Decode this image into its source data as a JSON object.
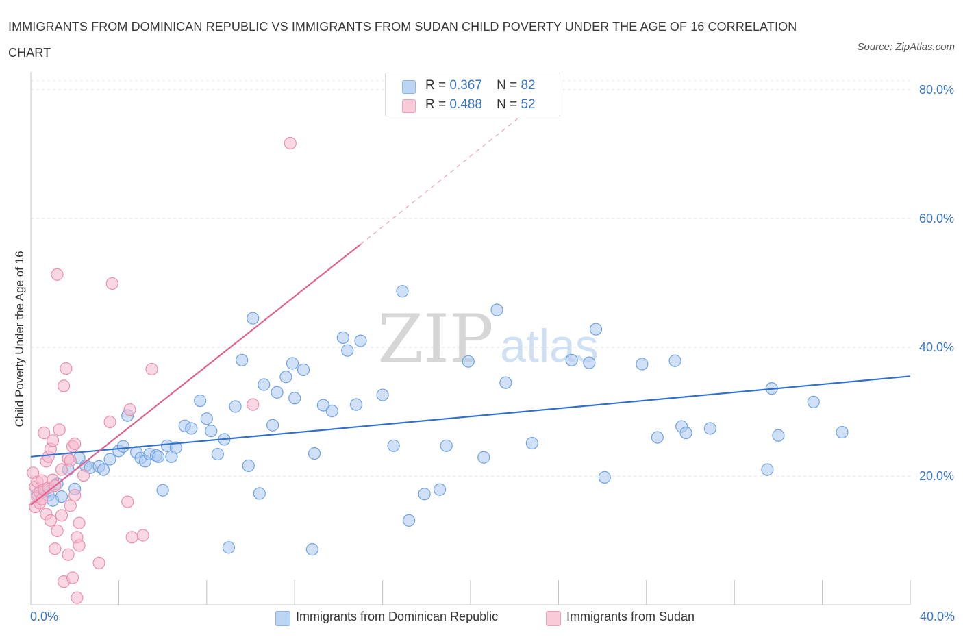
{
  "title": "IMMIGRANTS FROM DOMINICAN REPUBLIC VS IMMIGRANTS FROM SUDAN CHILD POVERTY UNDER THE AGE OF 16 CORRELATION CHART",
  "source": "Source: ZipAtlas.com",
  "watermark": {
    "zip": "ZIP",
    "atlas": "atlas"
  },
  "legend_top": {
    "rows": [
      {
        "r_label": "R =",
        "r_value": "0.367",
        "n_label": "N =",
        "n_value": "82",
        "color": "#aac8f0"
      },
      {
        "r_label": "R =",
        "r_value": "0.488",
        "n_label": "N =",
        "n_value": "52",
        "color": "#f5b8cc"
      }
    ]
  },
  "legend_bottom": [
    {
      "label": "Immigrants from Dominican Republic",
      "color": "#aac8f0"
    },
    {
      "label": "Immigrants from Sudan",
      "color": "#f5b8cc"
    }
  ],
  "x_tick_left": "0.0%",
  "x_tick_right": "40.0%",
  "chart_data": {
    "type": "scatter",
    "title": "IMMIGRANTS FROM DOMINICAN REPUBLIC VS IMMIGRANTS FROM SUDAN CHILD POVERTY UNDER THE AGE OF 16 CORRELATION CHART",
    "xlabel": "",
    "ylabel": "Child Poverty Under the Age of 16",
    "xlim": [
      0,
      40
    ],
    "ylim": [
      0,
      80
    ],
    "y_ticks": [
      {
        "value": 20,
        "label": "20.0%"
      },
      {
        "value": 40,
        "label": "40.0%"
      },
      {
        "value": 60,
        "label": "60.0%"
      },
      {
        "value": 80,
        "label": "80.0%"
      }
    ],
    "grid": true,
    "legend": "bottom",
    "series": [
      {
        "name": "Immigrants from Dominican Republic",
        "color": "#6fa2e2",
        "fill": "#aac8f0",
        "r": 0.367,
        "n": 82,
        "trend": {
          "x0": 0,
          "y0": 23.0,
          "x1": 40,
          "y1": 35.5
        },
        "points": [
          [
            0.3,
            17.2
          ],
          [
            0.6,
            17.6
          ],
          [
            0.8,
            17.0
          ],
          [
            1.2,
            18.8
          ],
          [
            1.4,
            16.8
          ],
          [
            1.7,
            21.0
          ],
          [
            2.2,
            22.8
          ],
          [
            2.5,
            21.6
          ],
          [
            2.7,
            21.3
          ],
          [
            3.1,
            21.5
          ],
          [
            3.3,
            21.0
          ],
          [
            3.6,
            22.6
          ],
          [
            4.0,
            23.9
          ],
          [
            4.2,
            24.6
          ],
          [
            4.4,
            29.4
          ],
          [
            4.8,
            23.7
          ],
          [
            5.0,
            22.8
          ],
          [
            5.2,
            22.3
          ],
          [
            5.4,
            23.4
          ],
          [
            5.7,
            23.2
          ],
          [
            6.0,
            17.8
          ],
          [
            6.2,
            24.7
          ],
          [
            6.4,
            23.0
          ],
          [
            6.6,
            24.4
          ],
          [
            7.0,
            27.8
          ],
          [
            7.3,
            27.4
          ],
          [
            7.7,
            31.7
          ],
          [
            8.0,
            28.9
          ],
          [
            8.2,
            27.0
          ],
          [
            8.5,
            23.4
          ],
          [
            8.8,
            25.7
          ],
          [
            9.0,
            8.9
          ],
          [
            9.3,
            30.8
          ],
          [
            9.6,
            38.0
          ],
          [
            9.9,
            21.6
          ],
          [
            10.1,
            44.5
          ],
          [
            10.4,
            17.3
          ],
          [
            10.6,
            34.2
          ],
          [
            11.0,
            27.9
          ],
          [
            11.2,
            33.0
          ],
          [
            11.6,
            35.4
          ],
          [
            11.9,
            37.5
          ],
          [
            12.0,
            32.1
          ],
          [
            12.4,
            36.5
          ],
          [
            12.8,
            8.6
          ],
          [
            12.9,
            23.5
          ],
          [
            13.3,
            31.0
          ],
          [
            13.7,
            30.1
          ],
          [
            14.2,
            41.5
          ],
          [
            14.4,
            39.5
          ],
          [
            14.8,
            31.1
          ],
          [
            15.0,
            41.0
          ],
          [
            16.0,
            32.6
          ],
          [
            16.5,
            24.7
          ],
          [
            16.9,
            48.7
          ],
          [
            17.2,
            13.1
          ],
          [
            17.9,
            17.2
          ],
          [
            18.6,
            17.9
          ],
          [
            18.9,
            24.7
          ],
          [
            19.9,
            37.8
          ],
          [
            20.6,
            22.9
          ],
          [
            21.2,
            45.8
          ],
          [
            21.6,
            34.5
          ],
          [
            22.8,
            25.1
          ],
          [
            24.6,
            38.0
          ],
          [
            25.4,
            37.6
          ],
          [
            25.7,
            42.8
          ],
          [
            26.1,
            19.8
          ],
          [
            27.8,
            37.4
          ],
          [
            28.5,
            26.0
          ],
          [
            29.3,
            37.9
          ],
          [
            29.6,
            27.7
          ],
          [
            29.8,
            26.7
          ],
          [
            30.9,
            27.4
          ],
          [
            33.5,
            21.0
          ],
          [
            33.7,
            33.6
          ],
          [
            34.0,
            26.3
          ],
          [
            35.6,
            31.5
          ],
          [
            36.9,
            26.8
          ],
          [
            2.0,
            18.0
          ],
          [
            1.0,
            16.2
          ],
          [
            5.8,
            23.0
          ]
        ]
      },
      {
        "name": "Immigrants from Sudan",
        "color": "#ea8fae",
        "fill": "#f5b8cc",
        "r": 0.488,
        "n": 52,
        "trend": {
          "x0": 0,
          "y0": 15.5,
          "x1": 15,
          "y1": 56.0
        },
        "trend_extension": {
          "x0": 15,
          "y0": 56.0,
          "x1": 22.5,
          "y1": 76.5
        },
        "points": [
          [
            0.1,
            20.5
          ],
          [
            0.2,
            18.3
          ],
          [
            0.2,
            15.2
          ],
          [
            0.3,
            19.1
          ],
          [
            0.3,
            16.8
          ],
          [
            0.4,
            17.5
          ],
          [
            0.4,
            15.8
          ],
          [
            0.5,
            19.3
          ],
          [
            0.5,
            16.4
          ],
          [
            0.6,
            17.9
          ],
          [
            0.6,
            26.7
          ],
          [
            0.7,
            22.3
          ],
          [
            0.7,
            14.1
          ],
          [
            0.8,
            23.0
          ],
          [
            0.8,
            18.2
          ],
          [
            0.9,
            24.2
          ],
          [
            0.9,
            13.1
          ],
          [
            1.0,
            25.5
          ],
          [
            1.0,
            19.4
          ],
          [
            1.1,
            8.7
          ],
          [
            1.2,
            11.5
          ],
          [
            1.2,
            51.3
          ],
          [
            1.3,
            27.2
          ],
          [
            1.4,
            13.9
          ],
          [
            1.4,
            21.0
          ],
          [
            1.5,
            3.6
          ],
          [
            1.5,
            34.0
          ],
          [
            1.6,
            36.7
          ],
          [
            1.7,
            22.7
          ],
          [
            1.7,
            7.8
          ],
          [
            1.8,
            22.4
          ],
          [
            1.8,
            15.4
          ],
          [
            1.9,
            4.2
          ],
          [
            1.9,
            24.6
          ],
          [
            2.0,
            25.0
          ],
          [
            2.0,
            17.0
          ],
          [
            2.1,
            1.1
          ],
          [
            2.1,
            10.5
          ],
          [
            2.2,
            9.2
          ],
          [
            2.2,
            12.7
          ],
          [
            2.4,
            20.1
          ],
          [
            3.1,
            6.5
          ],
          [
            3.6,
            28.4
          ],
          [
            3.7,
            49.9
          ],
          [
            4.4,
            16.0
          ],
          [
            4.5,
            30.3
          ],
          [
            4.6,
            10.5
          ],
          [
            5.1,
            10.8
          ],
          [
            5.5,
            36.6
          ],
          [
            10.1,
            31.1
          ],
          [
            11.8,
            71.7
          ],
          [
            1.1,
            18.5
          ]
        ]
      }
    ]
  }
}
